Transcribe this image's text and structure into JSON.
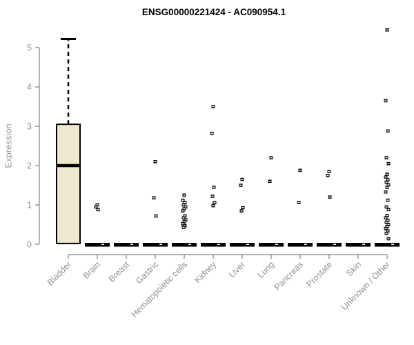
{
  "chart_data": {
    "type": "boxplot-scatter",
    "title": "ENSG00000221424 - AC090954.1",
    "ylabel": "Expression",
    "xlabel": "",
    "ylim": [
      0,
      5.5
    ],
    "yticks": [
      0,
      1,
      2,
      3,
      4,
      5
    ],
    "grid": "off",
    "legend": "none",
    "categories": [
      "Bladder",
      "Brain",
      "Breast",
      "Gastric",
      "Hematopoietic cells",
      "Kidney",
      "Liver",
      "Lung",
      "Pancreas",
      "Prostate",
      "Skin",
      "Unknown / Other"
    ],
    "box": {
      "category": "Bladder",
      "lower_whisker": 0.02,
      "q1": 0.02,
      "median": 2.0,
      "q3": 3.05,
      "upper_whisker": 5.22
    },
    "zero_median_bars": [
      "Brain",
      "Breast",
      "Gastric",
      "Hematopoietic cells",
      "Kidney",
      "Liver",
      "Lung",
      "Pancreas",
      "Prostate",
      "Skin",
      "Unknown / Other"
    ],
    "series": [
      {
        "category": "Bladder",
        "points": []
      },
      {
        "category": "Brain",
        "points": [
          1.0,
          0.95,
          0.88,
          0
        ]
      },
      {
        "category": "Breast",
        "points": [
          0
        ]
      },
      {
        "category": "Gastric",
        "points": [
          2.1,
          1.18,
          0.72,
          0
        ]
      },
      {
        "category": "Hematopoietic cells",
        "points": [
          1.25,
          1.12,
          1.06,
          1.0,
          0.95,
          0.9,
          0.85,
          0.72,
          0.67,
          0.62,
          0.57,
          0.52,
          0.47,
          0.43,
          0
        ]
      },
      {
        "category": "Kidney",
        "points": [
          3.5,
          2.82,
          1.45,
          1.22,
          1.06,
          0.98,
          0
        ]
      },
      {
        "category": "Liver",
        "points": [
          1.65,
          1.5,
          0.93,
          0.85,
          0
        ]
      },
      {
        "category": "Lung",
        "points": [
          2.2,
          1.6,
          0
        ]
      },
      {
        "category": "Pancreas",
        "points": [
          1.88,
          1.06,
          0
        ]
      },
      {
        "category": "Prostate",
        "points": [
          1.85,
          1.75,
          1.2,
          0
        ]
      },
      {
        "category": "Skin",
        "points": [
          0
        ]
      },
      {
        "category": "Unknown / Other",
        "points": [
          5.45,
          3.65,
          2.88,
          2.2,
          2.05,
          1.78,
          1.71,
          1.64,
          1.58,
          1.51,
          1.45,
          1.33,
          1.12,
          0.95,
          0.88,
          0.73,
          0.67,
          0.61,
          0.56,
          0.5,
          0.45,
          0.4,
          0.34,
          0.28,
          0.14,
          0
        ]
      }
    ],
    "colors": {
      "background": "#FFFFFF",
      "box_fill": "#EDE8CE",
      "box_border": "#000000",
      "median": "#000000",
      "point": "#000000",
      "axis_line": "#888888",
      "tick_label": "#909090",
      "title": "#000000"
    }
  }
}
